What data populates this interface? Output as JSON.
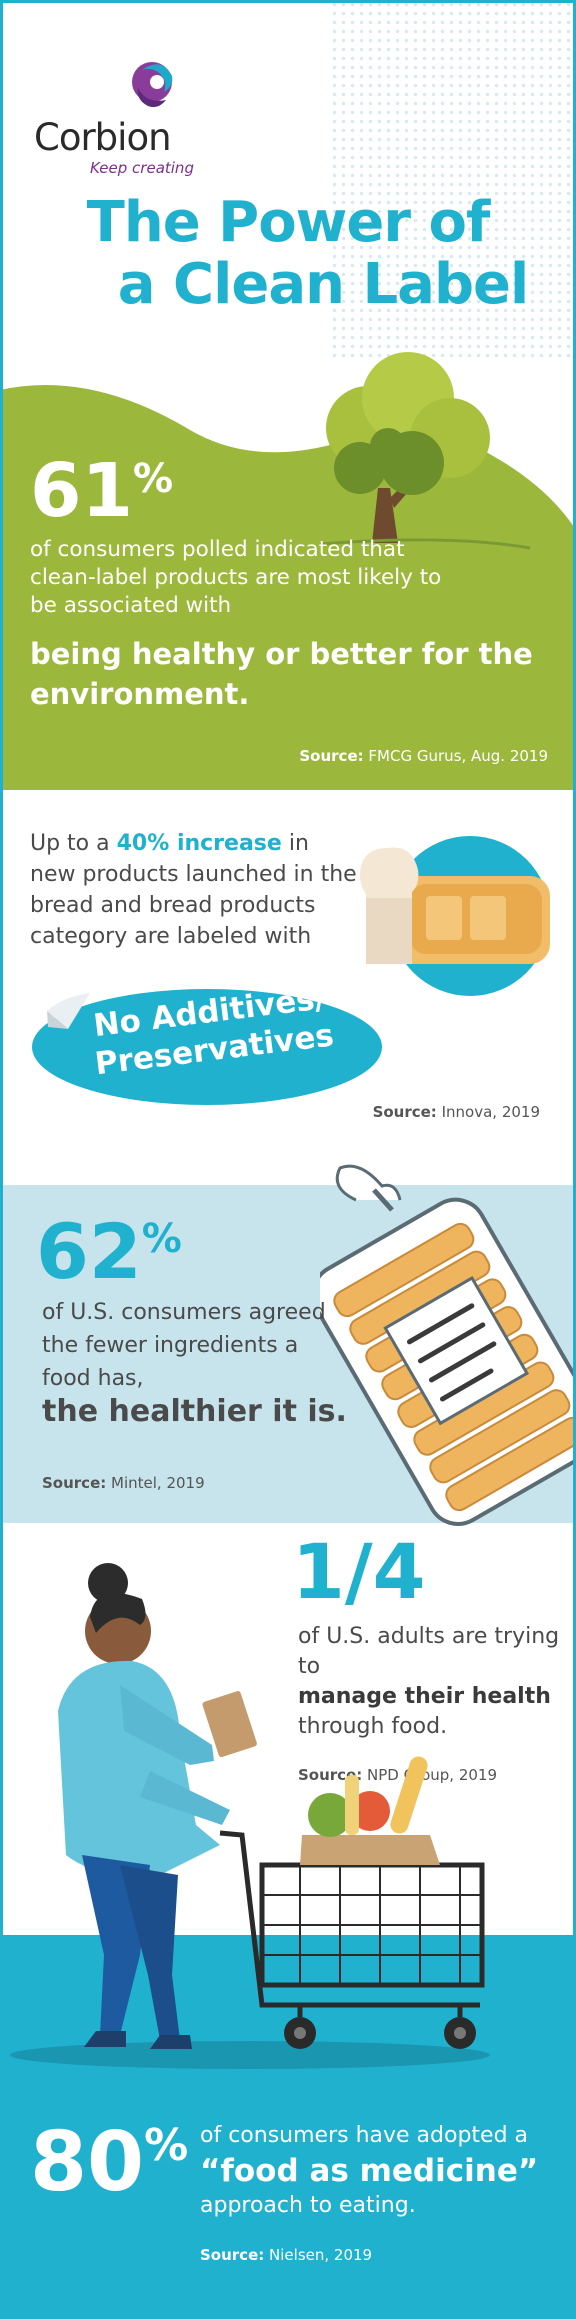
{
  "brand": {
    "name": "Corbion",
    "tagline": "Keep creating"
  },
  "title": {
    "line1": "The Power of",
    "line2": "a Clean Label"
  },
  "stat1": {
    "value": "61",
    "unit": "%",
    "text": "of consumers polled indicated that clean-label products are most likely to be associated with",
    "highlight": "being healthy or better for the environment.",
    "source_label": "Source:",
    "source": "FMCG Gurus, Aug. 2019"
  },
  "stat2": {
    "text_before": "Up to a",
    "highlight": "40% increase",
    "text_after": "in new products launched in the bread and bread products category are labeled with",
    "pill_line1": "No Additives/",
    "pill_line2": "Preservatives",
    "source_label": "Source:",
    "source": "Innova, 2019"
  },
  "stat3": {
    "value": "62",
    "unit": "%",
    "text": "of U.S. consumers agreed the fewer ingredients a food has,",
    "highlight": "the healthier it is.",
    "source_label": "Source:",
    "source": "Mintel, 2019"
  },
  "stat4": {
    "value": "1/4",
    "text_before": "of U.S. adults are trying to",
    "highlight": "manage their health",
    "text_after": "through food.",
    "source_label": "Source:",
    "source": "NPD Group, 2019"
  },
  "stat5": {
    "value": "80",
    "unit": "%",
    "text_before": "of consumers have adopted a",
    "highlight": "“food as medicine”",
    "text_after": "approach to eating.",
    "source_label": "Source:",
    "source": "Nielsen, 2019"
  },
  "colors": {
    "accent": "#20b1cf",
    "green": "#9cb83c",
    "light_blue": "#c7e3ec",
    "dark_text": "#4a4a4a",
    "purple": "#7d2e8c"
  }
}
